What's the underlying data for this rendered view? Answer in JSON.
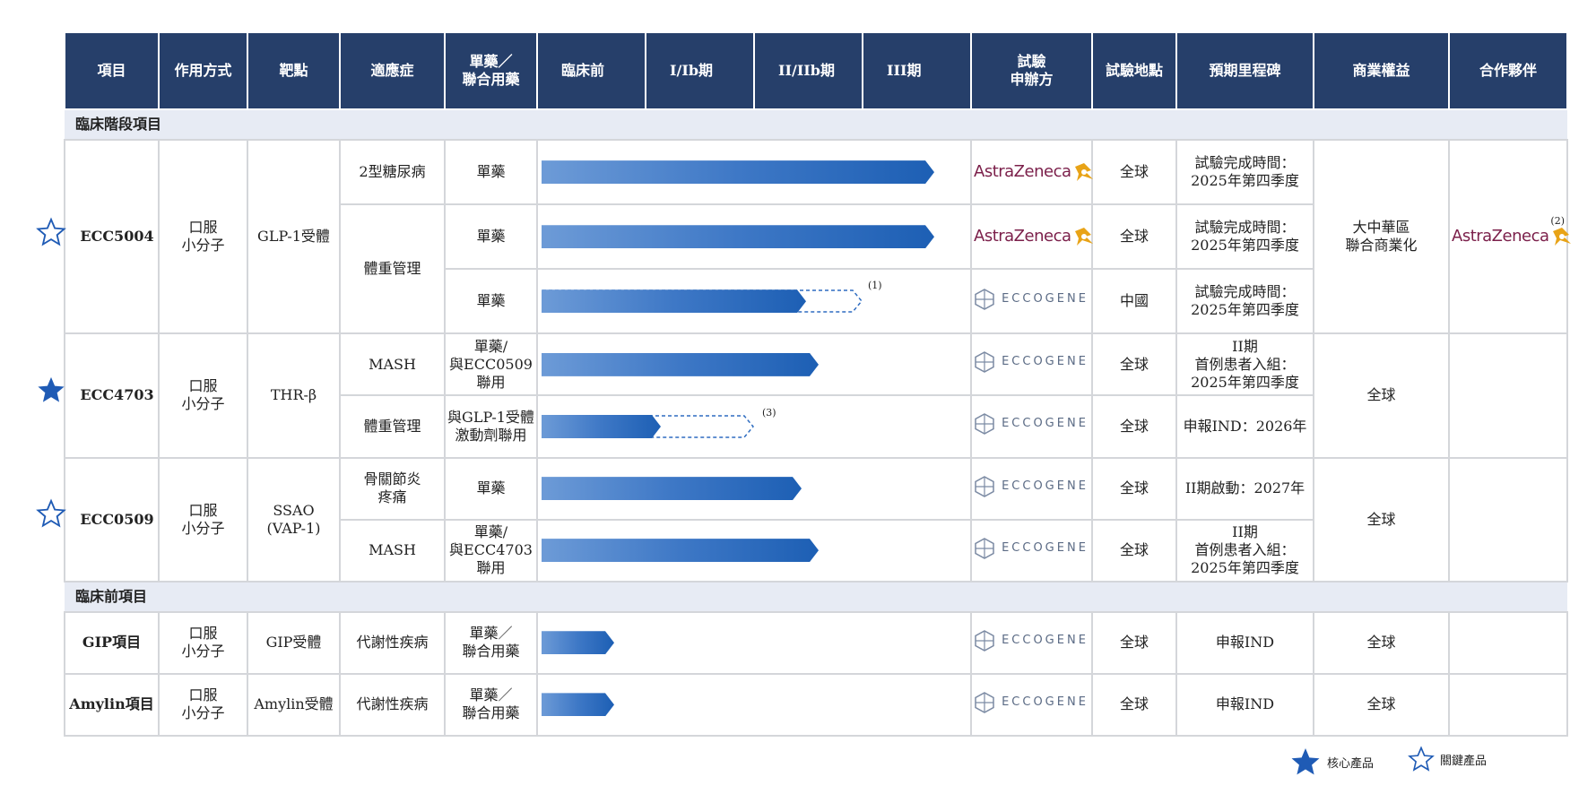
{
  "colors": {
    "header_bg": "#263f6a",
    "section_bg": "#e7ebf4",
    "bar_start": "#6d9bd7",
    "bar_end": "#1d5fb4",
    "star": "#1f5bb5",
    "az_text": "#7b1f4a",
    "az_gold": "#e8a317"
  },
  "header": {
    "project": "項目",
    "mode": "作用方式",
    "target": "靶點",
    "indication": "適應症",
    "combo_l1": "單藥／",
    "combo_l2": "聯合用藥",
    "preclinical": "臨床前",
    "phase1": "I/Ib期",
    "phase2": "II/IIb期",
    "phase3": "III期",
    "sponsor_l1": "試驗",
    "sponsor_l2": "申辦方",
    "location": "試驗地點",
    "milestone": "預期里程碑",
    "rights": "商業權益",
    "partner": "合作夥伴"
  },
  "sections": {
    "clinical": "臨床階段項目",
    "preclinical": "臨床前項目"
  },
  "logos": {
    "astrazeneca": "AstraZeneca",
    "eccogene": "ECCOGENE"
  },
  "ecc5004": {
    "name": "ECC5004",
    "mode_l1": "口服",
    "mode_l2": "小分子",
    "target": "GLP-1受體",
    "ind1": "2型糖尿病",
    "ind2": "體重管理",
    "combo1": "單藥",
    "combo2": "單藥",
    "combo3": "單藥",
    "loc1": "全球",
    "loc2": "全球",
    "loc3": "中國",
    "ms_l1": "試驗完成時間：",
    "ms_l2": "2025年第四季度",
    "rights_l1": "大中華區",
    "rights_l2": "聯合商業化",
    "fn1": "(1)",
    "fn2": "(2)",
    "progress": [
      0.92,
      0.92,
      0.62
    ]
  },
  "ecc4703": {
    "name": "ECC4703",
    "mode_l1": "口服",
    "mode_l2": "小分子",
    "target": "THR-β",
    "ind1": "MASH",
    "ind2": "體重管理",
    "combo1_l1": "單藥/",
    "combo1_l2": "與ECC0509",
    "combo1_l3": "聯用",
    "combo2_l1": "與GLP-1受體",
    "combo2_l2": "激動劑聯用",
    "loc1": "全球",
    "loc2": "全球",
    "ms1_l1": "II期",
    "ms1_l2": "首例患者入組：",
    "ms1_l3": "2025年第四季度",
    "ms2": "申報IND：2026年",
    "rights": "全球",
    "fn3": "(3)",
    "progress": [
      0.65,
      0.28
    ]
  },
  "ecc0509": {
    "name": "ECC0509",
    "mode_l1": "口服",
    "mode_l2": "小分子",
    "target_l1": "SSAO",
    "target_l2": "(VAP-1)",
    "ind1_l1": "骨關節炎",
    "ind1_l2": "疼痛",
    "ind2": "MASH",
    "combo1": "單藥",
    "combo2_l1": "單藥/",
    "combo2_l2": "與ECC4703",
    "combo2_l3": "聯用",
    "loc1": "全球",
    "loc2": "全球",
    "ms1": "II期啟動：2027年",
    "ms2_l1": "II期",
    "ms2_l2": "首例患者入組：",
    "ms2_l3": "2025年第四季度",
    "rights": "全球",
    "progress": [
      0.61,
      0.65
    ]
  },
  "gip": {
    "name": "GIP項目",
    "mode_l1": "口服",
    "mode_l2": "小分子",
    "target": "GIP受體",
    "ind": "代謝性疾病",
    "combo_l1": "單藥／",
    "combo_l2": "聯合用藥",
    "loc": "全球",
    "ms": "申報IND",
    "rights": "全球",
    "progress": 0.17
  },
  "amylin": {
    "name": "Amylin項目",
    "mode_l1": "口服",
    "mode_l2": "小分子",
    "target": "Amylin受體",
    "ind": "代謝性疾病",
    "combo_l1": "單藥／",
    "combo_l2": "聯合用藥",
    "loc": "全球",
    "ms": "申報IND",
    "rights": "全球",
    "progress": 0.17
  },
  "legend": {
    "core": "核心產品",
    "key": "關鍵產品"
  }
}
